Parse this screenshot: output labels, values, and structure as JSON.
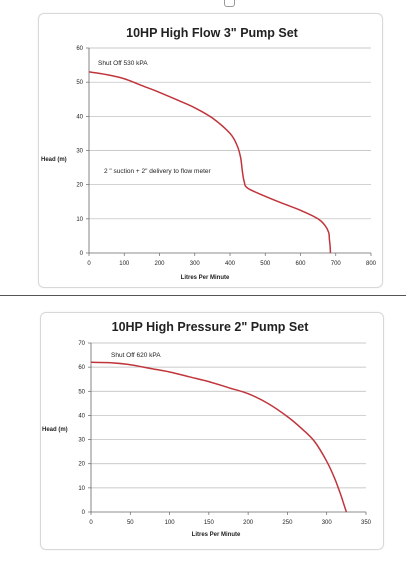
{
  "colors": {
    "curve": "#c0353c",
    "grid": "#b8b8b8",
    "axis": "#666666",
    "text": "#222222"
  },
  "chart_data": [
    {
      "type": "line",
      "title": "10HP High Flow 3\" Pump Set",
      "xlabel": "Litres Per Minute",
      "ylabel": "Head (m)",
      "xlim": [
        0,
        800
      ],
      "ylim": [
        0,
        60
      ],
      "xticks": [
        "0",
        "100",
        "200",
        "300",
        "400",
        "500",
        "600",
        "700",
        "800"
      ],
      "yticks": [
        "0",
        "10",
        "20",
        "30",
        "40",
        "50",
        "60"
      ],
      "grid": true,
      "annotations": [
        "Shut Off 530 kPA",
        "2 \" suction + 2\" delivery to flow meter"
      ],
      "series": [
        {
          "x": [
            0,
            50,
            100,
            150,
            200,
            250,
            300,
            350,
            400,
            420,
            430,
            435,
            440,
            450,
            500,
            550,
            600,
            650,
            670,
            680,
            682,
            684,
            685
          ],
          "y": [
            53,
            52.2,
            51,
            49,
            47,
            44.8,
            42.5,
            39.5,
            35,
            31.5,
            28,
            24,
            21,
            19,
            16.6,
            14.5,
            12.5,
            10,
            8,
            6,
            4,
            2,
            0
          ]
        }
      ]
    },
    {
      "type": "line",
      "title": "10HP High Pressure 2\" Pump Set",
      "xlabel": "Litres Per Minute",
      "ylabel": "Head (m)",
      "xlim": [
        0,
        350
      ],
      "ylim": [
        0,
        70
      ],
      "xticks": [
        "0",
        "50",
        "100",
        "150",
        "200",
        "250",
        "300",
        "350"
      ],
      "yticks": [
        "0",
        "10",
        "20",
        "30",
        "40",
        "50",
        "60",
        "70"
      ],
      "grid": true,
      "annotations": [
        "Shut Off 620 kPA"
      ],
      "series": [
        {
          "x": [
            0,
            25,
            50,
            75,
            100,
            125,
            150,
            175,
            200,
            225,
            250,
            270,
            285,
            300,
            310,
            318,
            322,
            325
          ],
          "y": [
            62,
            61.8,
            61,
            59.5,
            58,
            56,
            54,
            51.5,
            49,
            45,
            39.5,
            34,
            29,
            21,
            14,
            7,
            3,
            0
          ]
        }
      ]
    }
  ]
}
